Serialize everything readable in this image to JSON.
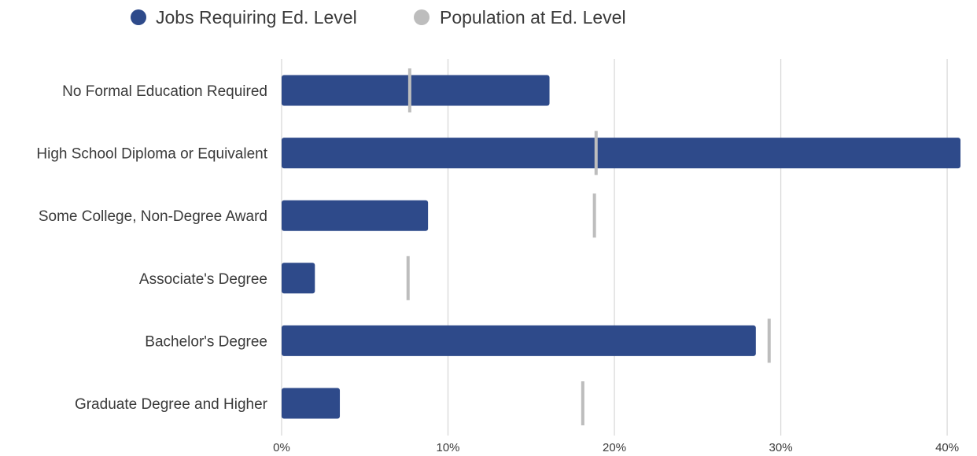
{
  "chart_data": {
    "type": "bar",
    "orientation": "horizontal",
    "categories": [
      "No Formal Education Required",
      "High School Diploma or Equivalent",
      "Some College, Non-Degree Award",
      "Associate's Degree",
      "Bachelor's Degree",
      "Graduate Degree and Higher"
    ],
    "series": [
      {
        "name": "Jobs Requiring Ed. Level",
        "mark": "bar",
        "color": "#2e4a8a",
        "values": [
          16.1,
          40.8,
          8.8,
          2.0,
          28.5,
          3.5
        ]
      },
      {
        "name": "Population at Ed. Level",
        "mark": "tick",
        "color": "#bdbdbd",
        "values": [
          7.7,
          18.9,
          18.8,
          7.6,
          29.3,
          18.1
        ]
      }
    ],
    "xlim": [
      0,
      40.8
    ],
    "xticks": [
      0,
      10,
      20,
      30,
      40
    ],
    "xtick_labels": [
      "0%",
      "10%",
      "20%",
      "30%",
      "40%"
    ],
    "grid": true,
    "legend_position": "top"
  }
}
